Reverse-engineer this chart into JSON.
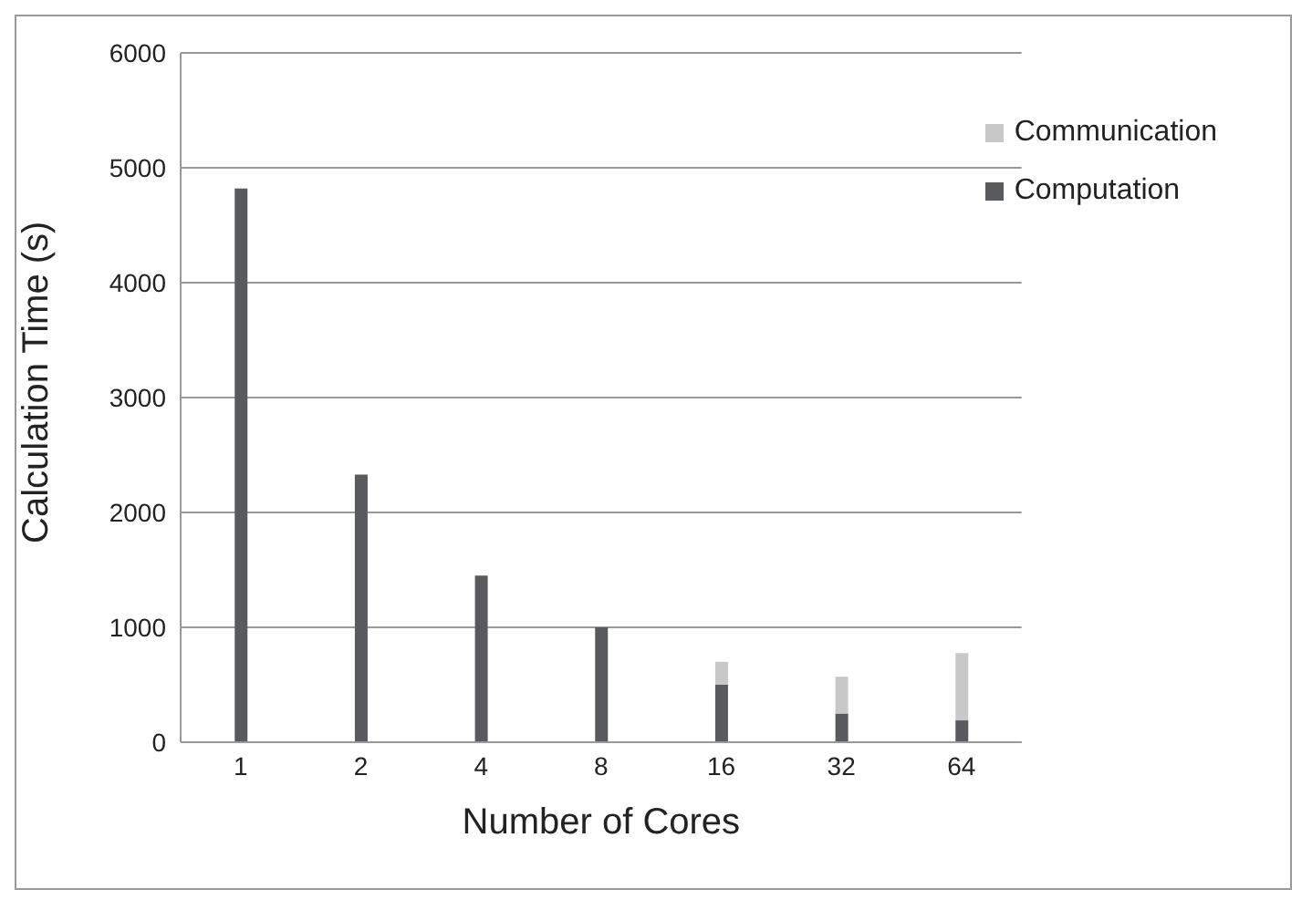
{
  "chart_data": {
    "type": "bar",
    "stacked": true,
    "xlabel": "Number of Cores",
    "ylabel": "Calculation Time (s)",
    "categories": [
      "1",
      "2",
      "4",
      "8",
      "16",
      "32",
      "64"
    ],
    "series": [
      {
        "name": "Computation",
        "color": "#595a5e",
        "values": [
          4820,
          2330,
          1450,
          1000,
          500,
          250,
          190
        ]
      },
      {
        "name": "Communication",
        "color": "#c8c8c8",
        "values": [
          0,
          0,
          0,
          0,
          200,
          320,
          585
        ]
      }
    ],
    "ylim": [
      0,
      6000
    ],
    "yticks": [
      0,
      1000,
      2000,
      3000,
      4000,
      5000,
      6000
    ],
    "grid": "y",
    "legend": "top right"
  }
}
